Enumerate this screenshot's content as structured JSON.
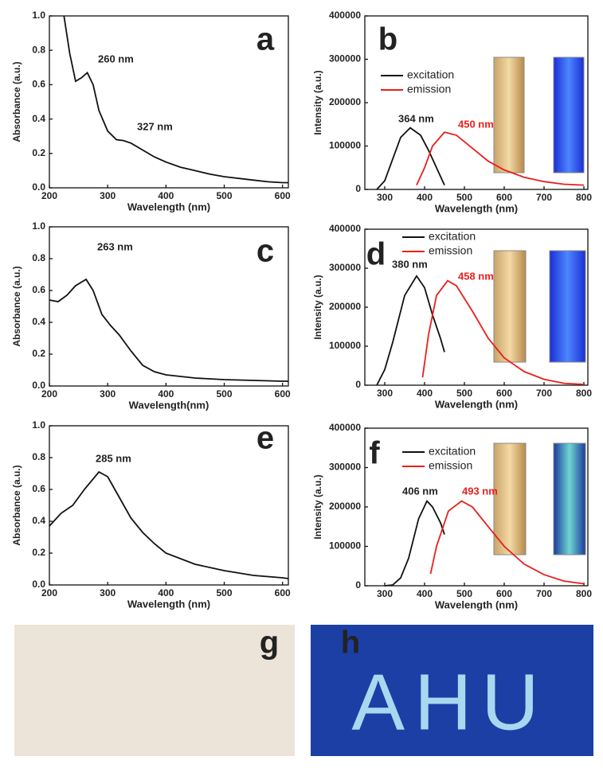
{
  "chart_data": [
    {
      "type": "line",
      "label": "a",
      "xlabel": "Wavelength (nm)",
      "ylabel": "Absorbance (a.u.)",
      "xlim": [
        200,
        610
      ],
      "xticks": [
        200,
        300,
        400,
        500,
        600
      ],
      "ylim": [
        0,
        1
      ],
      "yticks": [
        {
          "value": 0,
          "label": "0.0"
        },
        0.2,
        0.4,
        0.6,
        0.8,
        {
          "value": 1,
          "label": "1.0"
        }
      ],
      "annotations": [
        {
          "text": "260 nm",
          "color": "#222222"
        },
        {
          "text": "327 nm",
          "color": "#222222"
        }
      ],
      "series": [
        {
          "color": "#111111",
          "x": [
            225,
            235,
            245,
            255,
            265,
            275,
            285,
            300,
            315,
            327,
            340,
            360,
            380,
            400,
            425,
            450,
            475,
            500,
            550,
            575,
            600,
            610
          ],
          "values": [
            1.0,
            0.78,
            0.62,
            0.64,
            0.67,
            0.6,
            0.45,
            0.33,
            0.28,
            0.275,
            0.26,
            0.22,
            0.18,
            0.15,
            0.12,
            0.1,
            0.08,
            0.065,
            0.045,
            0.035,
            0.03,
            0.03
          ]
        }
      ]
    },
    {
      "type": "line",
      "label": "b",
      "xlabel": "Wavelength (nm)",
      "ylabel": "Intensity (a.u.)",
      "xlim": [
        250,
        810
      ],
      "xticks": [
        300,
        400,
        500,
        600,
        700,
        800
      ],
      "ylim": [
        0,
        400000
      ],
      "yticks": [
        0,
        100000,
        200000,
        300000,
        400000
      ],
      "annotations": [
        {
          "text": "364 nm",
          "color": "#222222"
        },
        {
          "text": "450 nm",
          "color": "#e8201c"
        }
      ],
      "series": [
        {
          "name": "excitation",
          "color": "#111111",
          "x": [
            280,
            300,
            320,
            340,
            364,
            390,
            410,
            430,
            450
          ],
          "values": [
            0,
            20000,
            70000,
            120000,
            142000,
            125000,
            90000,
            50000,
            10000
          ]
        },
        {
          "name": "emission",
          "color": "#e8201c",
          "x": [
            380,
            400,
            420,
            450,
            480,
            520,
            560,
            600,
            650,
            700,
            750,
            800
          ],
          "values": [
            10000,
            50000,
            100000,
            132000,
            125000,
            95000,
            65000,
            45000,
            28000,
            18000,
            12000,
            10000
          ]
        }
      ]
    },
    {
      "type": "line",
      "label": "c",
      "xlabel": "Wavelength(nm)",
      "ylabel": "Absorbance (a.u.)",
      "xlim": [
        200,
        610
      ],
      "xticks": [
        200,
        300,
        400,
        500,
        600
      ],
      "ylim": [
        0,
        1
      ],
      "yticks": [
        {
          "value": 0,
          "label": "0.0"
        },
        0.2,
        0.4,
        0.6,
        0.8,
        {
          "value": 1,
          "label": "1.0"
        }
      ],
      "annotations": [
        {
          "text": "263 nm",
          "color": "#222222"
        }
      ],
      "series": [
        {
          "color": "#111111",
          "x": [
            200,
            215,
            230,
            245,
            263,
            275,
            290,
            305,
            320,
            340,
            360,
            380,
            400,
            450,
            500,
            600,
            610
          ],
          "values": [
            0.54,
            0.53,
            0.57,
            0.63,
            0.67,
            0.6,
            0.45,
            0.38,
            0.32,
            0.22,
            0.13,
            0.09,
            0.07,
            0.05,
            0.04,
            0.03,
            0.03
          ]
        }
      ]
    },
    {
      "type": "line",
      "label": "d",
      "xlabel": "Wavelength (nm)",
      "ylabel": "Intensity (a.u.)",
      "xlim": [
        250,
        810
      ],
      "xticks": [
        300,
        400,
        500,
        600,
        700,
        800
      ],
      "ylim": [
        0,
        400000
      ],
      "yticks": [
        0,
        100000,
        200000,
        300000,
        400000
      ],
      "annotations": [
        {
          "text": "380 nm",
          "color": "#222222"
        },
        {
          "text": "458 nm",
          "color": "#e8201c"
        }
      ],
      "series": [
        {
          "name": "excitation",
          "color": "#111111",
          "x": [
            280,
            300,
            320,
            350,
            380,
            400,
            420,
            440,
            450
          ],
          "values": [
            0,
            40000,
            110000,
            230000,
            280000,
            250000,
            180000,
            120000,
            85000
          ]
        },
        {
          "name": "emission",
          "color": "#e8201c",
          "x": [
            395,
            410,
            430,
            458,
            480,
            520,
            560,
            600,
            650,
            700,
            750,
            800
          ],
          "values": [
            20000,
            130000,
            230000,
            268000,
            255000,
            190000,
            120000,
            70000,
            35000,
            15000,
            5000,
            2000
          ]
        }
      ]
    },
    {
      "type": "line",
      "label": "e",
      "xlabel": "Wavelength (nm)",
      "ylabel": "Absorbance (a.u.)",
      "xlim": [
        200,
        610
      ],
      "xticks": [
        200,
        300,
        400,
        500,
        600
      ],
      "ylim": [
        0,
        1
      ],
      "yticks": [
        {
          "value": 0,
          "label": "0.0"
        },
        0.2,
        0.4,
        0.6,
        0.8,
        {
          "value": 1,
          "label": "1.0"
        }
      ],
      "annotations": [
        {
          "text": "285 nm",
          "color": "#222222"
        }
      ],
      "series": [
        {
          "color": "#111111",
          "x": [
            200,
            220,
            240,
            260,
            285,
            300,
            320,
            340,
            360,
            380,
            400,
            450,
            500,
            550,
            600,
            610
          ],
          "values": [
            0.37,
            0.45,
            0.5,
            0.6,
            0.71,
            0.68,
            0.55,
            0.42,
            0.33,
            0.26,
            0.2,
            0.13,
            0.09,
            0.06,
            0.045,
            0.04
          ]
        }
      ]
    },
    {
      "type": "line",
      "label": "f",
      "xlabel": "Wavelength (nm)",
      "ylabel": "Intensity (a.u.)",
      "xlim": [
        250,
        810
      ],
      "xticks": [
        300,
        400,
        500,
        600,
        700,
        800
      ],
      "ylim": [
        0,
        400000
      ],
      "yticks": [
        0,
        100000,
        200000,
        300000,
        400000
      ],
      "annotations": [
        {
          "text": "406 nm",
          "color": "#222222"
        },
        {
          "text": "493 nm",
          "color": "#e8201c"
        }
      ],
      "series": [
        {
          "name": "excitation",
          "color": "#111111",
          "x": [
            300,
            320,
            340,
            360,
            385,
            406,
            420,
            440,
            450
          ],
          "values": [
            0,
            2000,
            20000,
            70000,
            170000,
            215000,
            200000,
            160000,
            130000
          ]
        },
        {
          "name": "emission",
          "color": "#e8201c",
          "x": [
            415,
            430,
            460,
            493,
            520,
            560,
            600,
            650,
            700,
            750,
            800
          ],
          "values": [
            30000,
            100000,
            190000,
            215000,
            200000,
            150000,
            100000,
            55000,
            28000,
            12000,
            5000
          ]
        }
      ]
    }
  ],
  "photos": [
    {
      "label": "g"
    },
    {
      "label": "h",
      "text": "AHU"
    }
  ]
}
